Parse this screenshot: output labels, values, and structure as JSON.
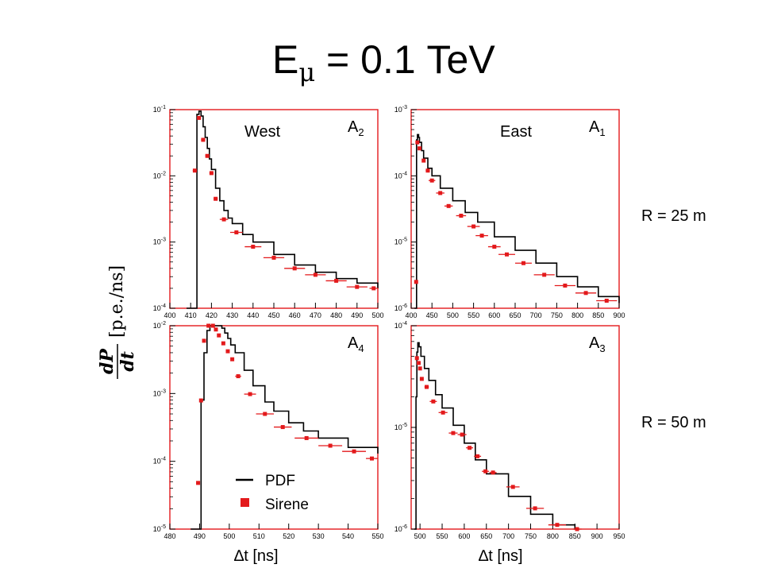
{
  "slide": {
    "title_main": "E",
    "title_sub": "μ",
    "title_rest": " = 0.1 TeV",
    "row_labels": [
      "R = 25 m",
      "R = 50 m"
    ],
    "ylabel_frac_num": "dP",
    "ylabel_frac_den": "dt",
    "ylabel_unit": "[p.e./ns]",
    "xlabel": "∆t [ns]",
    "legend": {
      "pdf": "PDF",
      "sirene": "Sirene"
    },
    "colors": {
      "pdf": "#000000",
      "sirene": "#e31a1c",
      "frame": "#e31a1c"
    }
  },
  "chart_data": [
    {
      "type": "line",
      "panel": "top-left",
      "region": "West",
      "tag_main": "A",
      "tag_sub": "2",
      "xlim": [
        400,
        500
      ],
      "ylog": true,
      "ylim_exp": [
        -4,
        -1
      ],
      "xticks": [
        400,
        410,
        420,
        430,
        440,
        450,
        460,
        470,
        480,
        490,
        500
      ],
      "pdf": {
        "x": [
          408,
          411,
          413,
          414,
          415,
          416,
          417,
          418,
          419,
          420,
          422,
          424,
          426,
          428,
          430,
          435,
          440,
          450,
          460,
          470,
          480,
          490,
          500
        ],
        "y": [
          0.0001,
          0.0001,
          0.085,
          0.095,
          0.08,
          0.055,
          0.038,
          0.026,
          0.018,
          0.0125,
          0.0065,
          0.0042,
          0.003,
          0.0023,
          0.0019,
          0.0013,
          0.001,
          0.00065,
          0.00045,
          0.00035,
          0.00028,
          0.00024,
          0.0002
        ]
      },
      "sirene": {
        "x": [
          412,
          414,
          416,
          418,
          420,
          422,
          426,
          432,
          440,
          450,
          460,
          470,
          480,
          490,
          498
        ],
        "y": [
          0.012,
          0.075,
          0.035,
          0.02,
          0.011,
          0.0045,
          0.0022,
          0.0014,
          0.00085,
          0.00058,
          0.0004,
          0.00032,
          0.00026,
          0.00021,
          0.0002
        ],
        "xerr": [
          1,
          1,
          1,
          1,
          1,
          1,
          2,
          3,
          4,
          5,
          5,
          5,
          5,
          5,
          2
        ]
      }
    },
    {
      "type": "line",
      "panel": "top-right",
      "region": "East",
      "tag_main": "A",
      "tag_sub": "1",
      "xlim": [
        400,
        900
      ],
      "ylog": true,
      "ylim_exp": [
        -6,
        -3
      ],
      "xticks": [
        400,
        450,
        500,
        550,
        600,
        650,
        700,
        750,
        800,
        850,
        900
      ],
      "pdf": {
        "x": [
          408,
          411,
          413,
          415,
          418,
          420,
          425,
          430,
          440,
          450,
          470,
          500,
          530,
          560,
          600,
          650,
          700,
          750,
          800,
          850,
          900
        ],
        "y": [
          1e-06,
          1e-06,
          0.00035,
          0.00042,
          0.00038,
          0.00032,
          0.00024,
          0.000185,
          0.00013,
          0.0001,
          6.5e-05,
          4.2e-05,
          2.8e-05,
          2e-05,
          1.2e-05,
          7.5e-06,
          4.8e-06,
          3e-06,
          2.1e-06,
          1.5e-06,
          1.2e-06
        ]
      },
      "sirene": {
        "x": [
          412,
          415,
          420,
          430,
          440,
          450,
          470,
          490,
          520,
          550,
          570,
          600,
          630,
          670,
          720,
          770,
          820,
          870
        ],
        "y": [
          2.5e-06,
          0.00032,
          0.00026,
          0.00017,
          0.00012,
          8.5e-05,
          5.5e-05,
          3.5e-05,
          2.5e-05,
          1.72e-05,
          1.25e-05,
          8.5e-06,
          6.5e-06,
          4.8e-06,
          3.2e-06,
          2.2e-06,
          1.7e-06,
          1.3e-06
        ],
        "xerr": [
          2,
          2,
          3,
          4,
          5,
          8,
          10,
          10,
          12,
          15,
          15,
          15,
          20,
          20,
          25,
          25,
          25,
          25
        ]
      }
    },
    {
      "type": "line",
      "panel": "bottom-left",
      "region": "",
      "tag_main": "A",
      "tag_sub": "4",
      "xlim": [
        480,
        550
      ],
      "ylog": true,
      "ylim_exp": [
        -5,
        -2
      ],
      "xticks": [
        480,
        490,
        500,
        510,
        520,
        530,
        540,
        550
      ],
      "pdf": {
        "x": [
          487,
          489.5,
          490.5,
          491.5,
          492.5,
          493.5,
          494.5,
          495.5,
          496.5,
          497.5,
          498.5,
          499.5,
          500.5,
          502,
          505,
          508,
          512,
          515,
          520,
          525,
          530,
          540,
          550
        ],
        "y": [
          1e-05,
          1e-05,
          0.0008,
          0.004,
          0.0085,
          0.011,
          0.0118,
          0.0115,
          0.0105,
          0.0092,
          0.0078,
          0.0065,
          0.0052,
          0.004,
          0.0022,
          0.0013,
          0.00075,
          0.00055,
          0.00037,
          0.00028,
          0.00022,
          0.00016,
          0.00013
        ]
      },
      "sirene": {
        "x": [
          489.5,
          490.5,
          491.5,
          493,
          494.5,
          495.5,
          496.5,
          498,
          499.5,
          501,
          503,
          507,
          512,
          518,
          526,
          534,
          542,
          548
        ],
        "y": [
          4.8e-05,
          0.00079,
          0.006,
          0.0105,
          0.0104,
          0.0088,
          0.0072,
          0.0055,
          0.0042,
          0.0032,
          0.0018,
          0.00098,
          0.0005,
          0.00032,
          0.00022,
          0.00017,
          0.00014,
          0.00011
        ],
        "xerr": [
          0.5,
          0.5,
          0.5,
          0.5,
          0.5,
          0.5,
          0.5,
          0.5,
          0.5,
          0.5,
          1,
          2,
          3,
          3,
          4,
          4,
          4,
          2
        ]
      }
    },
    {
      "type": "line",
      "panel": "bottom-right",
      "region": "",
      "tag_main": "A",
      "tag_sub": "3",
      "xlim": [
        480,
        950
      ],
      "ylog": true,
      "ylim_exp": [
        -6,
        -4
      ],
      "xticks": [
        500,
        550,
        600,
        650,
        700,
        750,
        800,
        850,
        900,
        950
      ],
      "pdf": {
        "x": [
          487,
          489,
          491,
          493,
          495,
          498,
          502,
          510,
          520,
          535,
          550,
          575,
          600,
          625,
          650,
          700,
          750,
          800,
          850,
          860
        ],
        "y": [
          1e-06,
          1e-06,
          2e-05,
          5.5e-05,
          6.8e-05,
          6.2e-05,
          5e-05,
          3.8e-05,
          2.9e-05,
          2.1e-05,
          1.55e-05,
          1.05e-05,
          7e-06,
          4.8e-06,
          3.5e-06,
          2.1e-06,
          1.4e-06,
          1.1e-06,
          1e-06,
          1e-06
        ]
      },
      "sirene": {
        "x": [
          493,
          497,
          500,
          504,
          515,
          530,
          552,
          575,
          595,
          612,
          630,
          648,
          665,
          710,
          760,
          810,
          855
        ],
        "y": [
          4.8e-05,
          4.3e-05,
          3.8e-05,
          3e-05,
          2.5e-05,
          1.8e-05,
          1.4e-05,
          8.8e-06,
          8.5e-06,
          6.3e-06,
          5.2e-06,
          3.7e-06,
          3.6e-06,
          2.6e-06,
          1.6e-06,
          1.1e-06,
          1e-06
        ],
        "xerr": [
          2,
          2,
          2,
          2,
          5,
          8,
          10,
          10,
          10,
          8,
          8,
          8,
          8,
          15,
          20,
          20,
          10
        ]
      }
    }
  ]
}
